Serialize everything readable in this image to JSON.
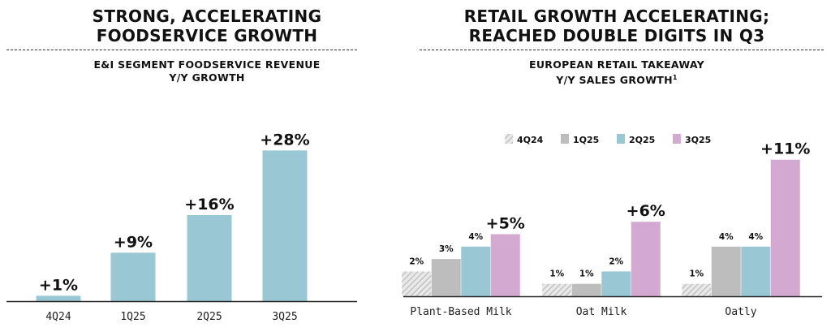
{
  "left_panel": {
    "title_line1": "STRONG, ACCELERATING",
    "title_line2": "FOODSERVICE GROWTH",
    "subtitle_line1": "E&I SEGMENT FOODSERVICE REVENUE",
    "subtitle_line2": "Y/Y GROWTH"
  },
  "right_panel": {
    "title_line1": "RETAIL GROWTH ACCELERATING;",
    "title_line2": "REACHED DOUBLE DIGITS IN Q3",
    "subtitle_line1": "EUROPEAN RETAIL TAKEAWAY",
    "subtitle_line2": "Y/Y SALES GROWTH",
    "subtitle_sup": "1"
  },
  "colors": {
    "bar_left": "#99c7d3",
    "s_4q24": "#cfcfcf",
    "s_1q25": "#bdbdbd",
    "s_2q25": "#99c7d3",
    "s_3q25": "#d4a9d1",
    "axis": "#222222"
  },
  "chart_data": [
    {
      "type": "bar",
      "title": "E&I SEGMENT FOODSERVICE REVENUE Y/Y GROWTH",
      "categories": [
        "4Q24",
        "1Q25",
        "2Q25",
        "3Q25"
      ],
      "values": [
        1,
        9,
        16,
        28
      ],
      "labels": [
        "+1%",
        "+9%",
        "+16%",
        "+28%"
      ],
      "ylim": [
        0,
        32
      ],
      "xlabel": "",
      "ylabel": ""
    },
    {
      "type": "bar",
      "title": "EUROPEAN RETAIL TAKEAWAY Y/Y SALES GROWTH",
      "categories": [
        "Plant-Based Milk",
        "Oat Milk",
        "Oatly"
      ],
      "series": [
        {
          "name": "4Q24",
          "values": [
            2,
            1,
            1
          ],
          "labels": [
            "2%",
            "1%",
            "1%"
          ],
          "hatched": true
        },
        {
          "name": "1Q25",
          "values": [
            3,
            1,
            4
          ],
          "labels": [
            "3%",
            "1%",
            "4%"
          ]
        },
        {
          "name": "2Q25",
          "values": [
            4,
            2,
            4
          ],
          "labels": [
            "4%",
            "2%",
            "4%"
          ]
        },
        {
          "name": "3Q25",
          "values": [
            5,
            6,
            11
          ],
          "labels": [
            "+5%",
            "+6%",
            "+11%"
          ]
        }
      ],
      "ylim": [
        0,
        12
      ],
      "legend_position": "top",
      "xlabel": "",
      "ylabel": ""
    }
  ]
}
